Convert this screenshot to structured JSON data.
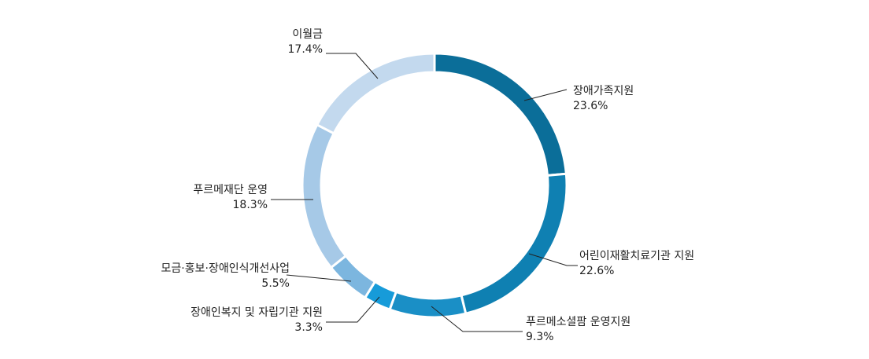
{
  "chart_data": {
    "type": "pie",
    "variant": "donut",
    "title": "",
    "slices": [
      {
        "name": "장애가족지원",
        "value": 23.6,
        "label": "23.6%",
        "color": "#0b6e99"
      },
      {
        "name": "어린이재활치료기관 지원",
        "value": 22.6,
        "label": "22.6%",
        "color": "#0f80b2"
      },
      {
        "name": "푸르메소셜팜 운영지원",
        "value": 9.3,
        "label": "9.3%",
        "color": "#1a8fc6"
      },
      {
        "name": "장애인복지 및 자립기관 지원",
        "value": 3.3,
        "label": "3.3%",
        "color": "#179bd9"
      },
      {
        "name": "모금·홍보·장애인식개선사업",
        "value": 5.5,
        "label": "5.5%",
        "color": "#7cb6df"
      },
      {
        "name": "푸르메재단 운영",
        "value": 18.3,
        "label": "18.3%",
        "color": "#a6c9e7"
      },
      {
        "name": "이월금",
        "value": 17.4,
        "label": "17.4%",
        "color": "#c3d9ee"
      }
    ],
    "legend": "none",
    "start": "top",
    "direction": "clockwise"
  }
}
